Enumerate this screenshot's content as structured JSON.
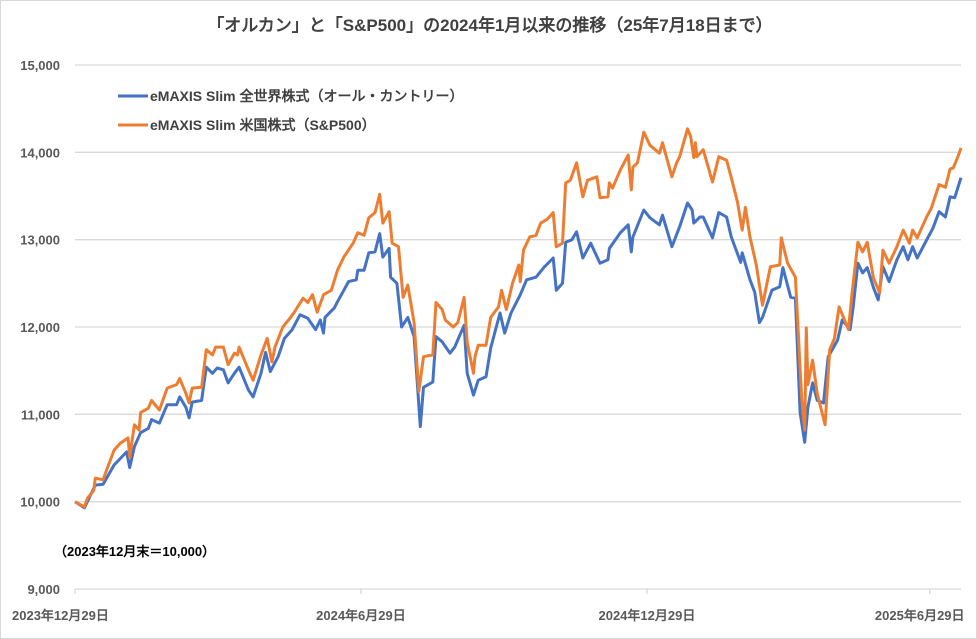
{
  "chart_data": {
    "type": "line",
    "title": "「オルカン」と「S&P500」の2024年1月以来の推移（25年7月18日まで）",
    "xlabel": "",
    "ylabel": "",
    "x_unit": "days since 2023-12-29",
    "xlim": [
      0,
      567
    ],
    "ylim": [
      9000,
      15000
    ],
    "grid": true,
    "legend_position": "top-left",
    "annotation": "（2023年12月末＝10,000）",
    "y_ticks": [
      {
        "value": 9000,
        "label": "9,000"
      },
      {
        "value": 10000,
        "label": "10,000"
      },
      {
        "value": 11000,
        "label": "11,000"
      },
      {
        "value": 12000,
        "label": "12,000"
      },
      {
        "value": 13000,
        "label": "13,000"
      },
      {
        "value": 14000,
        "label": "14,000"
      },
      {
        "value": 15000,
        "label": "15,000"
      }
    ],
    "x_ticks": [
      {
        "value": 0,
        "label": "2023年12月29日"
      },
      {
        "value": 183,
        "label": "2024年6月29日"
      },
      {
        "value": 366,
        "label": "2024年12月29日"
      },
      {
        "value": 547,
        "label": "2025年6月29日"
      }
    ],
    "series": [
      {
        "name": "eMAXIS Slim 全世界株式（オール・カントリー）",
        "color": "#4472c4",
        "x": [
          0,
          6,
          13,
          18,
          25,
          33,
          35,
          38,
          42,
          47,
          49,
          54,
          59,
          65,
          67,
          71,
          73,
          75,
          81,
          84,
          88,
          91,
          95,
          98,
          102,
          105,
          111,
          114,
          119,
          122,
          125,
          130,
          134,
          139,
          144,
          149,
          154,
          157,
          159,
          160,
          166,
          168,
          172,
          175,
          180,
          181,
          185,
          188,
          192,
          195,
          197,
          201,
          202,
          206,
          209,
          213,
          217,
          221,
          223,
          229,
          231,
          235,
          240,
          243,
          249,
          251,
          255,
          258,
          263,
          266,
          272,
          275,
          279,
          285,
          289,
          295,
          300,
          306,
          308,
          312,
          314,
          318,
          321,
          325,
          330,
          336,
          341,
          342,
          349,
          354,
          356,
          357,
          364,
          368,
          374,
          376,
          382,
          387,
          392,
          395,
          396,
          400,
          402,
          408,
          412,
          417,
          420,
          426,
          427,
          432,
          435,
          438,
          440,
          446,
          451,
          453,
          458,
          461,
          464,
          467,
          469,
          472,
          475,
          479,
          482,
          488,
          491,
          496,
          498,
          501,
          504,
          507,
          511,
          514,
          517,
          521,
          526,
          530,
          533,
          536,
          539,
          546,
          549,
          553,
          557,
          560,
          563,
          567
        ],
        "values": [
          10000,
          9930,
          10190,
          10200,
          10420,
          10570,
          10390,
          10630,
          10790,
          10840,
          10940,
          10900,
          11110,
          11110,
          11200,
          11080,
          10960,
          11140,
          11160,
          11540,
          11470,
          11530,
          11510,
          11360,
          11470,
          11540,
          11280,
          11200,
          11470,
          11710,
          11490,
          11660,
          11870,
          11970,
          12140,
          12100,
          11970,
          12080,
          11930,
          12110,
          12220,
          12290,
          12420,
          12520,
          12540,
          12650,
          12650,
          12850,
          12860,
          13070,
          12800,
          12900,
          12570,
          12500,
          12000,
          12110,
          11890,
          10860,
          11310,
          11370,
          11890,
          11830,
          11700,
          11770,
          12020,
          11470,
          11220,
          11390,
          11430,
          11760,
          12160,
          11930,
          12160,
          12370,
          12540,
          12570,
          12680,
          12790,
          12420,
          12500,
          12970,
          13000,
          13090,
          12790,
          12960,
          12730,
          12770,
          12900,
          13080,
          13170,
          12860,
          13030,
          13340,
          13250,
          13170,
          13280,
          12920,
          13150,
          13420,
          13340,
          13190,
          13260,
          13260,
          13020,
          13310,
          13260,
          13030,
          12740,
          12850,
          12540,
          12400,
          12050,
          12110,
          12420,
          12460,
          12680,
          12340,
          12330,
          11020,
          10680,
          11080,
          11360,
          11160,
          11130,
          11660,
          11850,
          12080,
          11970,
          12230,
          12730,
          12620,
          12680,
          12450,
          12310,
          12690,
          12520,
          12770,
          12920,
          12770,
          12920,
          12790,
          13030,
          13130,
          13320,
          13260,
          13490,
          13480,
          13710
        ]
      },
      {
        "name": "eMAXIS Slim 米国株式（S&P500）",
        "color": "#ed7d31",
        "x": [
          0,
          6,
          8,
          12,
          13,
          18,
          21,
          25,
          29,
          34,
          35,
          38,
          41,
          42,
          47,
          49,
          54,
          59,
          65,
          67,
          71,
          73,
          75,
          81,
          84,
          88,
          90,
          95,
          98,
          102,
          104,
          105,
          111,
          114,
          119,
          123,
          126,
          128,
          133,
          138,
          140,
          146,
          149,
          152,
          155,
          159,
          164,
          168,
          172,
          178,
          181,
          185,
          188,
          192,
          195,
          197,
          201,
          203,
          207,
          210,
          213,
          217,
          220,
          223,
          229,
          231,
          235,
          237,
          242,
          245,
          249,
          251,
          255,
          256,
          258,
          263,
          266,
          271,
          273,
          276,
          280,
          284,
          285,
          287,
          291,
          295,
          298,
          302,
          306,
          308,
          312,
          314,
          317,
          321,
          325,
          328,
          334,
          336,
          341,
          342,
          344,
          349,
          354,
          356,
          357,
          360,
          364,
          368,
          374,
          376,
          382,
          385,
          387,
          392,
          394,
          396,
          397,
          398,
          402,
          408,
          412,
          417,
          420,
          424,
          427,
          429,
          432,
          436,
          440,
          445,
          451,
          452,
          456,
          461,
          465,
          467,
          468,
          469,
          472,
          475,
          480,
          483,
          486,
          489,
          495,
          497,
          501,
          504,
          507,
          511,
          515,
          517,
          521,
          526,
          530,
          534,
          536,
          539,
          545,
          548,
          553,
          557,
          560,
          562,
          565,
          567
        ],
        "values": [
          10000,
          9940,
          10040,
          10130,
          10270,
          10250,
          10400,
          10590,
          10670,
          10730,
          10510,
          10880,
          10820,
          11020,
          11070,
          11160,
          11050,
          11300,
          11340,
          11410,
          11240,
          11130,
          11300,
          11310,
          11740,
          11680,
          11770,
          11770,
          11570,
          11700,
          11680,
          11770,
          11510,
          11390,
          11680,
          11870,
          11600,
          11770,
          12000,
          12110,
          12160,
          12330,
          12280,
          12370,
          12170,
          12370,
          12420,
          12650,
          12800,
          12960,
          13080,
          13050,
          13250,
          13310,
          13520,
          13190,
          13320,
          12960,
          12920,
          12340,
          12480,
          12050,
          11260,
          11660,
          11680,
          12280,
          12200,
          12080,
          12000,
          12050,
          12340,
          11820,
          11470,
          11660,
          11790,
          11790,
          12110,
          12230,
          12420,
          12200,
          12500,
          12710,
          12520,
          12880,
          13030,
          13050,
          13190,
          13230,
          13310,
          12920,
          12960,
          13650,
          13680,
          13880,
          13490,
          13680,
          13720,
          13480,
          13490,
          13650,
          13590,
          13800,
          13970,
          13570,
          13830,
          13880,
          14230,
          14080,
          13990,
          14110,
          13720,
          13880,
          13950,
          14270,
          14180,
          13940,
          14110,
          13950,
          14030,
          13660,
          13950,
          13910,
          13710,
          13430,
          13110,
          13370,
          13030,
          12710,
          12250,
          12690,
          12710,
          13020,
          12730,
          12570,
          11200,
          10820,
          11990,
          11340,
          11620,
          11240,
          10880,
          11740,
          11870,
          12230,
          11970,
          12340,
          12970,
          12860,
          12970,
          12560,
          12390,
          12880,
          12730,
          12920,
          13110,
          12960,
          13110,
          13020,
          13260,
          13360,
          13630,
          13600,
          13810,
          13820,
          13950,
          14050
        ]
      }
    ]
  }
}
